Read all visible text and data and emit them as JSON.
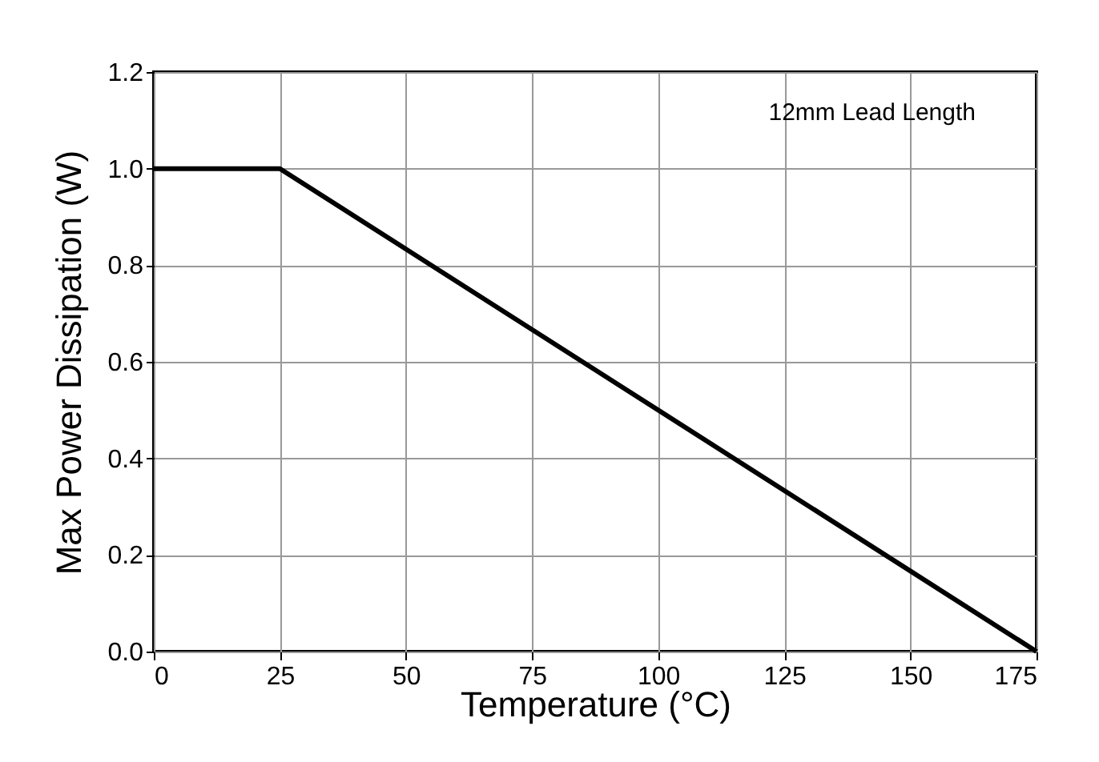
{
  "chart_data": {
    "type": "line",
    "xlabel": "Temperature (°C)",
    "ylabel": "Max Power Dissipation (W)",
    "annotations": [
      "12mm Lead Length"
    ],
    "x": [
      0,
      25,
      175
    ],
    "series": [
      {
        "color": "#000000",
        "values": [
          1.0,
          1.0,
          0.0
        ]
      }
    ],
    "xlim": [
      0,
      175
    ],
    "xticks": [
      0,
      25,
      50,
      75,
      100,
      125,
      150,
      175
    ],
    "ylim": [
      0,
      1.2
    ],
    "yticks": [
      {
        "value": 0,
        "label": "0.0"
      },
      {
        "value": 0.2,
        "label": "0.2"
      },
      {
        "value": 0.4,
        "label": "0.4"
      },
      {
        "value": 0.6,
        "label": "0.6"
      },
      {
        "value": 0.8,
        "label": "0.8"
      },
      {
        "value": 1,
        "label": "1.0"
      },
      {
        "value": 1.2,
        "label": "1.2"
      }
    ],
    "grid": true,
    "marker": "none",
    "line_style": "solid"
  }
}
